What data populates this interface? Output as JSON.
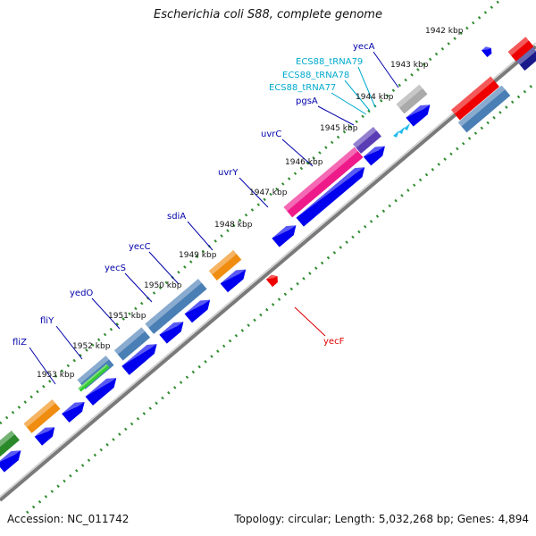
{
  "title": "Escherichia coli S88, complete genome",
  "footer": {
    "accession": "Accession: NC_011742",
    "topology": "Topology: circular; Length: 5,032,268 bp; Genes: 4,894"
  },
  "colors": {
    "backbone": "#777777",
    "tick": "#2e8b2e",
    "forward_gene": "#0000ee",
    "gene_label": "#0000aa",
    "trna_label": "#00aacc",
    "reverse_gene_label": "#dd0000"
  },
  "ticks": [
    {
      "kbp": 1942,
      "label": "1942 kbp"
    },
    {
      "kbp": 1943,
      "label": "1943 kbp"
    },
    {
      "kbp": 1944,
      "label": "1944 kbp"
    },
    {
      "kbp": 1945,
      "label": "1945 kbp"
    },
    {
      "kbp": 1946,
      "label": "1946 kbp"
    },
    {
      "kbp": 1947,
      "label": "1947 kbp"
    },
    {
      "kbp": 1948,
      "label": "1948 kbp"
    },
    {
      "kbp": 1949,
      "label": "1949 kbp"
    },
    {
      "kbp": 1950,
      "label": "1950 kbp"
    },
    {
      "kbp": 1951,
      "label": "1951 kbp"
    },
    {
      "kbp": 1952,
      "label": "1952 kbp"
    },
    {
      "kbp": 1953,
      "label": "1953 kbp"
    }
  ],
  "gene_labels": [
    {
      "name": "yecA",
      "type": "gene"
    },
    {
      "name": "ECS88_tRNA79",
      "type": "trna"
    },
    {
      "name": "ECS88_tRNA78",
      "type": "trna"
    },
    {
      "name": "ECS88_tRNA77",
      "type": "trna"
    },
    {
      "name": "pgsA",
      "type": "gene"
    },
    {
      "name": "uvrC",
      "type": "gene"
    },
    {
      "name": "uvrY",
      "type": "gene"
    },
    {
      "name": "sdiA",
      "type": "gene"
    },
    {
      "name": "yecC",
      "type": "gene"
    },
    {
      "name": "yecS",
      "type": "gene"
    },
    {
      "name": "yedO",
      "type": "gene"
    },
    {
      "name": "fliY",
      "type": "gene"
    },
    {
      "name": "fliZ",
      "type": "gene"
    },
    {
      "name": "yecF",
      "type": "reverse"
    }
  ]
}
